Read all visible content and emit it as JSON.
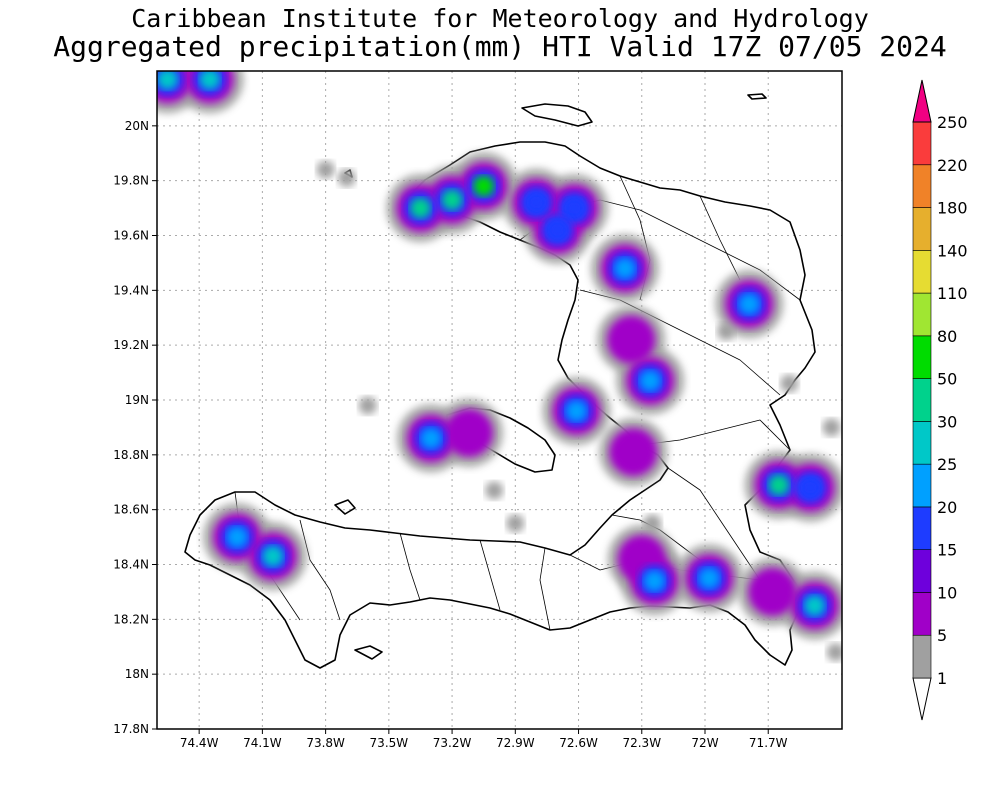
{
  "header": {
    "title": "Caribbean Institute for Meteorology and Hydrology",
    "subtitle": "Aggregated precipitation(mm) HTI Valid 17Z 07/05 2024"
  },
  "map": {
    "lon_range": [
      -74.6,
      -71.35
    ],
    "lat_range": [
      17.8,
      20.2
    ],
    "lat_ticks": [
      {
        "value": 20.0,
        "label": "20N"
      },
      {
        "value": 19.8,
        "label": "19.8N"
      },
      {
        "value": 19.6,
        "label": "19.6N"
      },
      {
        "value": 19.4,
        "label": "19.4N"
      },
      {
        "value": 19.2,
        "label": "19.2N"
      },
      {
        "value": 19.0,
        "label": "19N"
      },
      {
        "value": 18.8,
        "label": "18.8N"
      },
      {
        "value": 18.6,
        "label": "18.6N"
      },
      {
        "value": 18.4,
        "label": "18.4N"
      },
      {
        "value": 18.2,
        "label": "18.2N"
      },
      {
        "value": 18.0,
        "label": "18N"
      },
      {
        "value": 17.8,
        "label": "17.8N"
      }
    ],
    "lon_ticks": [
      {
        "value": -74.4,
        "label": "74.4W"
      },
      {
        "value": -74.1,
        "label": "74.1W"
      },
      {
        "value": -73.8,
        "label": "73.8W"
      },
      {
        "value": -73.5,
        "label": "73.5W"
      },
      {
        "value": -73.2,
        "label": "73.2W"
      },
      {
        "value": -72.9,
        "label": "72.9W"
      },
      {
        "value": -72.6,
        "label": "72.6W"
      },
      {
        "value": -72.3,
        "label": "72.3W"
      },
      {
        "value": -72.0,
        "label": "72W"
      },
      {
        "value": -71.7,
        "label": "71.7W"
      }
    ],
    "grid": true,
    "precip_cells": [
      {
        "lon": -74.55,
        "lat": 20.17,
        "mm": 30
      },
      {
        "lon": -74.35,
        "lat": 20.17,
        "mm": 30
      },
      {
        "lon": -73.2,
        "lat": 19.73,
        "mm": 50
      },
      {
        "lon": -73.05,
        "lat": 19.78,
        "mm": 80
      },
      {
        "lon": -73.35,
        "lat": 19.7,
        "mm": 50
      },
      {
        "lon": -72.8,
        "lat": 19.72,
        "mm": 20
      },
      {
        "lon": -72.62,
        "lat": 19.7,
        "mm": 20
      },
      {
        "lon": -72.7,
        "lat": 19.62,
        "mm": 20
      },
      {
        "lon": -72.38,
        "lat": 19.48,
        "mm": 25
      },
      {
        "lon": -71.79,
        "lat": 19.35,
        "mm": 25
      },
      {
        "lon": -72.35,
        "lat": 19.22,
        "mm": 10
      },
      {
        "lon": -72.26,
        "lat": 19.07,
        "mm": 25
      },
      {
        "lon": -72.61,
        "lat": 18.96,
        "mm": 25
      },
      {
        "lon": -73.3,
        "lat": 18.86,
        "mm": 25
      },
      {
        "lon": -73.12,
        "lat": 18.88,
        "mm": 10
      },
      {
        "lon": -72.34,
        "lat": 18.81,
        "mm": 10
      },
      {
        "lon": -71.65,
        "lat": 18.69,
        "mm": 50
      },
      {
        "lon": -71.5,
        "lat": 18.68,
        "mm": 20
      },
      {
        "lon": -74.22,
        "lat": 18.5,
        "mm": 25
      },
      {
        "lon": -74.05,
        "lat": 18.43,
        "mm": 30
      },
      {
        "lon": -72.3,
        "lat": 18.42,
        "mm": 10
      },
      {
        "lon": -72.24,
        "lat": 18.34,
        "mm": 25
      },
      {
        "lon": -71.98,
        "lat": 18.35,
        "mm": 25
      },
      {
        "lon": -71.68,
        "lat": 18.3,
        "mm": 10
      },
      {
        "lon": -71.48,
        "lat": 18.25,
        "mm": 30
      }
    ],
    "light_rain_spots": [
      {
        "lon": -73.8,
        "lat": 19.84
      },
      {
        "lon": -73.7,
        "lat": 19.81
      },
      {
        "lon": -71.9,
        "lat": 19.25
      },
      {
        "lon": -73.6,
        "lat": 18.98
      },
      {
        "lon": -73.0,
        "lat": 18.67
      },
      {
        "lon": -72.9,
        "lat": 18.55
      },
      {
        "lon": -72.25,
        "lat": 18.55
      },
      {
        "lon": -71.38,
        "lat": 18.08
      },
      {
        "lon": -71.6,
        "lat": 19.06
      },
      {
        "lon": -71.4,
        "lat": 18.9
      }
    ]
  },
  "colorbar": {
    "levels": [
      {
        "label": "1",
        "color": "#ffffff"
      },
      {
        "label": "5",
        "color": "#a0a0a0"
      },
      {
        "label": "10",
        "color": "#a000c8"
      },
      {
        "label": "15",
        "color": "#6e00dc"
      },
      {
        "label": "20",
        "color": "#1e3cff"
      },
      {
        "label": "25",
        "color": "#00a0ff"
      },
      {
        "label": "30",
        "color": "#00c8c8"
      },
      {
        "label": "50",
        "color": "#00d28c"
      },
      {
        "label": "80",
        "color": "#00dc00"
      },
      {
        "label": "110",
        "color": "#a0e632"
      },
      {
        "label": "140",
        "color": "#e6dc32"
      },
      {
        "label": "180",
        "color": "#e6af2d"
      },
      {
        "label": "220",
        "color": "#f08228"
      },
      {
        "label": "250",
        "color": "#fa3c3c"
      }
    ],
    "top_color": "#f00082"
  }
}
